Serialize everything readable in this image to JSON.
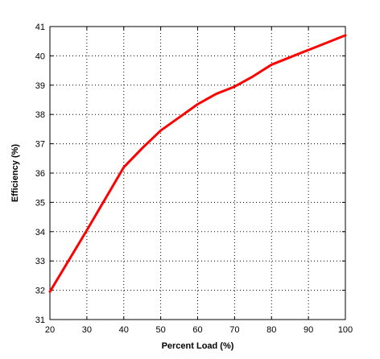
{
  "chart_data": {
    "type": "line",
    "title": "",
    "xlabel": "Percent Load (%)",
    "ylabel": "Efficiency (%)",
    "xlim": [
      20,
      100
    ],
    "ylim": [
      31,
      41
    ],
    "x_ticks": [
      20,
      30,
      40,
      50,
      60,
      70,
      80,
      90,
      100
    ],
    "y_ticks": [
      31,
      32,
      33,
      34,
      35,
      36,
      37,
      38,
      39,
      40,
      41
    ],
    "grid": true,
    "grid_style": "dotted",
    "line_color": "#ff0000",
    "series": [
      {
        "x": [
          20,
          30,
          40,
          45,
          50,
          55,
          60,
          65,
          70,
          75,
          80,
          85,
          90,
          95,
          100
        ],
        "values": [
          31.95,
          34.05,
          36.2,
          36.85,
          37.45,
          37.9,
          38.35,
          38.7,
          38.95,
          39.3,
          39.7,
          39.95,
          40.2,
          40.45,
          40.7
        ]
      }
    ]
  }
}
